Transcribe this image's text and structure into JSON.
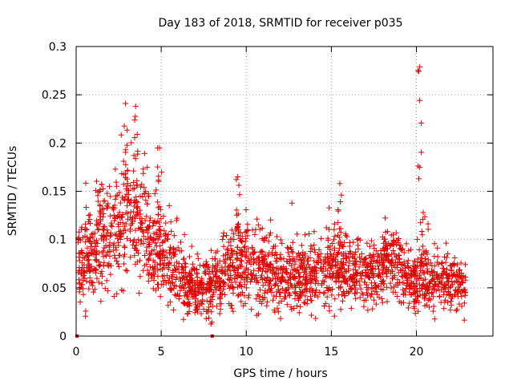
{
  "chart_data": {
    "type": "scatter",
    "title": "Day 183 of 2018, SRMTID for receiver p035",
    "xlabel": "GPS time / hours",
    "ylabel": "SRMTID / TECUs",
    "xlim": [
      0,
      24.5
    ],
    "ylim": [
      0,
      0.3
    ],
    "xticks": [
      0,
      5,
      10,
      15,
      20
    ],
    "yticks": [
      0,
      0.05,
      0.1,
      0.15,
      0.2,
      0.25,
      0.3
    ],
    "ytick_labels": [
      "0",
      "0.05",
      "0.1",
      "0.15",
      "0.2",
      "0.25",
      "0.3"
    ],
    "grid": true,
    "marker": "+",
    "color": "#e00000",
    "series": [
      {
        "name": "SRMTID",
        "profile": {
          "x": [
            0,
            0.5,
            1,
            1.5,
            2,
            2.5,
            3,
            3.5,
            4,
            4.5,
            5,
            5.5,
            6,
            6.5,
            7,
            7.5,
            8,
            8.5,
            9,
            9.5,
            10,
            10.5,
            11,
            11.5,
            12,
            12.5,
            13,
            13.5,
            14,
            14.5,
            15,
            15.5,
            16,
            16.5,
            17,
            17.5,
            18,
            18.5,
            19,
            19.5,
            20,
            20.5,
            21,
            21.5,
            22,
            22.5,
            23
          ],
          "y": [
            0.07,
            0.08,
            0.085,
            0.09,
            0.1,
            0.11,
            0.12,
            0.12,
            0.11,
            0.095,
            0.09,
            0.075,
            0.06,
            0.055,
            0.05,
            0.052,
            0.055,
            0.06,
            0.075,
            0.08,
            0.08,
            0.075,
            0.07,
            0.065,
            0.063,
            0.062,
            0.06,
            0.062,
            0.065,
            0.068,
            0.07,
            0.072,
            0.068,
            0.065,
            0.06,
            0.063,
            0.07,
            0.075,
            0.07,
            0.06,
            0.055,
            0.06,
            0.06,
            0.055,
            0.055,
            0.052,
            0.05
          ]
        },
        "peaks": [
          {
            "x": 1.5,
            "y": 0.157
          },
          {
            "x": 2.9,
            "y": 0.241
          },
          {
            "x": 3.5,
            "y": 0.238
          },
          {
            "x": 4.9,
            "y": 0.195
          },
          {
            "x": 9.5,
            "y": 0.165
          },
          {
            "x": 15.5,
            "y": 0.158
          },
          {
            "x": 20.2,
            "y": 0.279
          },
          {
            "x": 20.4,
            "y": 0.128
          }
        ],
        "zero_points": [
          {
            "x": 0.05,
            "y": 0
          },
          {
            "x": 8.0,
            "y": 0
          }
        ]
      }
    ]
  }
}
